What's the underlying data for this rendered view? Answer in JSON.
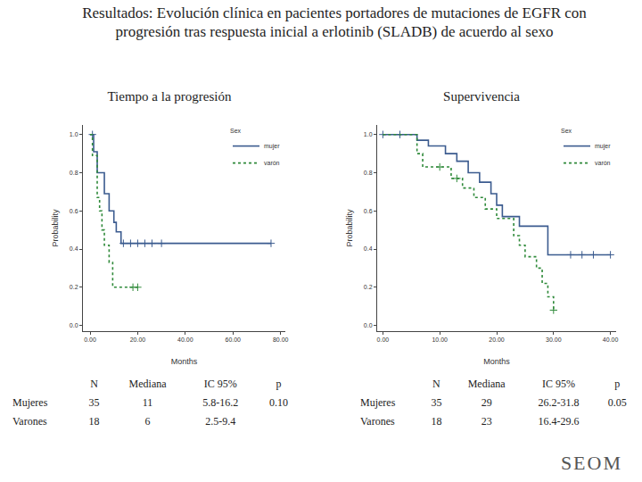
{
  "title": "Resultados: Evolución clínica en pacientes portadores de mutaciones de EGFR con progresión tras respuesta inicial a erlotinib (SLADB) de acuerdo al sexo",
  "chart_data": [
    {
      "type": "step",
      "title": "Tiempo a la progresión",
      "x_label": "Months",
      "y_label": "Probability",
      "legend_title": "Sex",
      "legend": "top right",
      "grid": false,
      "xlim": [
        -3,
        82
      ],
      "xticks": [
        {
          "value": 0,
          "label": "0.00"
        },
        {
          "value": 20,
          "label": "20.00"
        },
        {
          "value": 40,
          "label": "40.00"
        },
        {
          "value": 60,
          "label": "60.00"
        },
        {
          "value": 80,
          "label": "80.00"
        }
      ],
      "ylim": [
        -0.03,
        1.05
      ],
      "yticks": [
        {
          "value": 0,
          "label": "0.0"
        },
        {
          "value": 0.2,
          "label": "0.2"
        },
        {
          "value": 0.4,
          "label": "0.4"
        },
        {
          "value": 0.6,
          "label": "0.6"
        },
        {
          "value": 0.8,
          "label": "0.8"
        },
        {
          "value": 1,
          "label": "1.0"
        }
      ],
      "series": [
        {
          "name": "mujer",
          "color": "#3b5b8f",
          "line_style": "solid",
          "marker": "cross",
          "x": [
            0,
            1.5,
            3,
            6,
            8,
            10,
            11,
            13,
            76
          ],
          "values": [
            1,
            0.91,
            0.8,
            0.69,
            0.6,
            0.54,
            0.49,
            0.43,
            0.43
          ],
          "censored": {
            "x": [
              1,
              14,
              17,
              20,
              23,
              26,
              30,
              76
            ],
            "values": [
              1,
              0.43,
              0.43,
              0.43,
              0.43,
              0.43,
              0.43,
              0.43
            ]
          }
        },
        {
          "name": "varón",
          "color": "#2f8a3a",
          "line_style": "dot",
          "marker": "cross",
          "x": [
            0,
            1,
            3,
            4,
            5,
            6,
            8,
            9.5,
            20
          ],
          "values": [
            1,
            0.89,
            0.67,
            0.6,
            0.5,
            0.42,
            0.33,
            0.2,
            0.2
          ],
          "censored": {
            "x": [
              18,
              20
            ],
            "values": [
              0.2,
              0.2
            ]
          }
        }
      ]
    },
    {
      "type": "step",
      "title": "Supervivencia",
      "x_label": "Months",
      "y_label": "Probability",
      "legend_title": "Sex",
      "legend": "top right",
      "grid": false,
      "xlim": [
        -1,
        41
      ],
      "xticks": [
        {
          "value": 0,
          "label": "0.00"
        },
        {
          "value": 10,
          "label": "10.00"
        },
        {
          "value": 20,
          "label": "20.00"
        },
        {
          "value": 30,
          "label": "30.00"
        },
        {
          "value": 40,
          "label": "40.00"
        }
      ],
      "ylim": [
        -0.03,
        1.05
      ],
      "yticks": [
        {
          "value": 0,
          "label": "0.0"
        },
        {
          "value": 0.2,
          "label": "0.2"
        },
        {
          "value": 0.4,
          "label": "0.4"
        },
        {
          "value": 0.6,
          "label": "0.6"
        },
        {
          "value": 0.8,
          "label": "0.8"
        },
        {
          "value": 1,
          "label": "1.0"
        }
      ],
      "series": [
        {
          "name": "mujer",
          "color": "#3b5b8f",
          "line_style": "solid",
          "marker": "cross",
          "x": [
            0,
            6,
            8,
            11,
            13,
            15,
            17,
            19,
            20,
            21,
            24,
            29,
            40
          ],
          "values": [
            1,
            0.97,
            0.94,
            0.9,
            0.86,
            0.8,
            0.75,
            0.69,
            0.63,
            0.57,
            0.52,
            0.37,
            0.37
          ],
          "censored": {
            "x": [
              0,
              3,
              33,
              35,
              37,
              40
            ],
            "values": [
              1,
              1,
              0.37,
              0.37,
              0.37,
              0.37
            ]
          }
        },
        {
          "name": "varón",
          "color": "#2f8a3a",
          "line_style": "dot",
          "marker": "cross",
          "x": [
            0,
            6,
            7,
            12,
            14,
            16,
            18,
            20,
            23,
            24,
            25,
            27,
            28,
            29,
            30
          ],
          "values": [
            1,
            0.9,
            0.83,
            0.77,
            0.72,
            0.67,
            0.61,
            0.56,
            0.47,
            0.42,
            0.36,
            0.3,
            0.22,
            0.15,
            0.08
          ],
          "censored": {
            "x": [
              10,
              13,
              30
            ],
            "values": [
              0.83,
              0.77,
              0.08
            ]
          }
        }
      ]
    }
  ],
  "tables": [
    {
      "columns": [
        "N",
        "Mediana",
        "IC 95%",
        "p"
      ],
      "p": "0.10",
      "rows": [
        {
          "label": "Mujeres",
          "cells": [
            "35",
            "11",
            "5.8-16.2"
          ]
        },
        {
          "label": "Varones",
          "cells": [
            "18",
            "6",
            "2.5-9.4"
          ]
        }
      ]
    },
    {
      "columns": [
        "N",
        "Mediana",
        "IC 95%",
        "p"
      ],
      "p": "0.05",
      "rows": [
        {
          "label": "Mujeres",
          "cells": [
            "35",
            "29",
            "26.2-31.8"
          ]
        },
        {
          "label": "Varones",
          "cells": [
            "18",
            "23",
            "16.4-29.6"
          ]
        }
      ]
    }
  ],
  "logo": "SEOM"
}
